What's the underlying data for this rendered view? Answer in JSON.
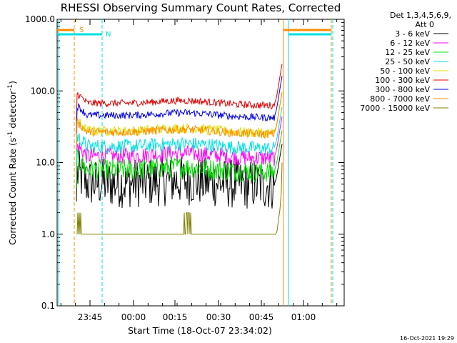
{
  "chart_data": {
    "type": "line",
    "title": "RHESSI Observing Summary Count Rates, Corrected",
    "xlabel": "Start Time (18-Oct-07 23:34:02)",
    "ylabel_main": "Corrected Count Rate (s",
    "ylabel_sup1": "-1",
    "ylabel_mid": " detector",
    "ylabel_sup2": "-1",
    "ylabel_end": ")",
    "yscale": "log",
    "ylim": [
      0.1,
      1000.0
    ],
    "y_ticks": [
      {
        "value": 0.1,
        "label": "0.1"
      },
      {
        "value": 1.0,
        "label": "1.0"
      },
      {
        "value": 10.0,
        "label": "10.0"
      },
      {
        "value": 100.0,
        "label": "100.0"
      },
      {
        "value": 1000.0,
        "label": "1000.0"
      }
    ],
    "x_ticks": [
      "23:45",
      "00:00",
      "00:15",
      "00:30",
      "00:45",
      "01:00"
    ],
    "legend_header": [
      "Det 1,3,4,5,6,9,",
      "Att 0"
    ],
    "series": [
      {
        "name": "3 - 6 keV",
        "color": "#000000",
        "level": 5.2,
        "noise": 0.35
      },
      {
        "name": "6 - 12 keV",
        "color": "#ff00ff",
        "level": 12.5,
        "noise": 0.12
      },
      {
        "name": "12 - 25 keV",
        "color": "#00e000",
        "level": 8.0,
        "noise": 0.15
      },
      {
        "name": "25 - 50 keV",
        "color": "#00e0e0",
        "level": 17.0,
        "noise": 0.1
      },
      {
        "name": "50 - 100 keV",
        "color": "#e0e000",
        "level": 28.0,
        "noise": 0.07
      },
      {
        "name": "100 - 300 keV",
        "color": "#e00000",
        "level": 68.0,
        "noise": 0.05
      },
      {
        "name": "300 - 800 keV",
        "color": "#0000e0",
        "level": 46.0,
        "noise": 0.05
      },
      {
        "name": "800 - 7000 keV",
        "color": "#ff8c00",
        "level": 27.0,
        "noise": 0.06
      },
      {
        "name": "7000 - 15000 keV",
        "color": "#808000",
        "level": 1.0,
        "noise": 0.0
      }
    ],
    "markers": [
      {
        "label": "S",
        "color": "#ff8c00"
      },
      {
        "label": "N",
        "color": "#00e0e0"
      }
    ],
    "grid": false,
    "legend_position": "right"
  },
  "footer": {
    "timestamp": "16-Oct-2021 19:29"
  },
  "colors": {
    "orange_bar": "#ff8c00",
    "cyan_bar": "#00e0e0"
  }
}
